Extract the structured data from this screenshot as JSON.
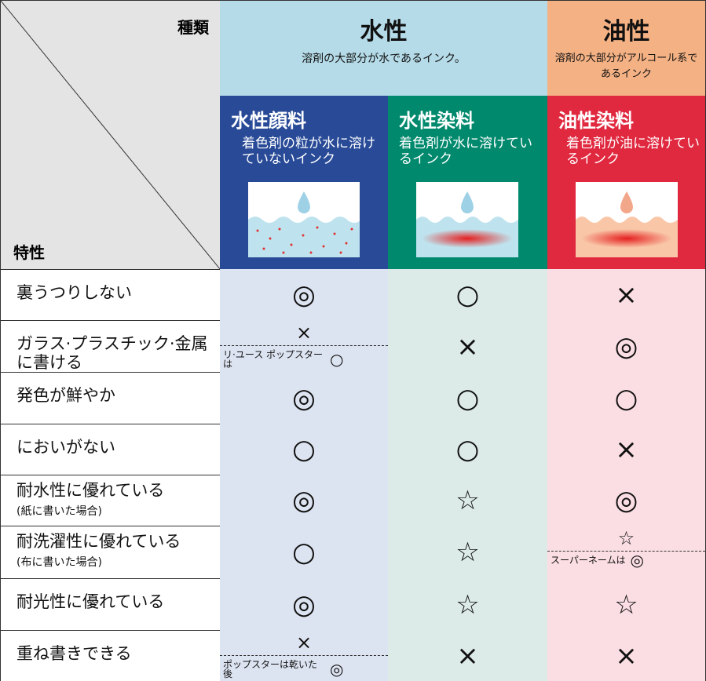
{
  "header": {
    "corner_top": "種類",
    "corner_bottom": "特性",
    "groups": [
      {
        "title": "水性",
        "desc": "溶剤の大部分が水であるインク。"
      },
      {
        "title": "油性",
        "desc": "溶剤の大部分がアルコール系であるインク"
      }
    ],
    "subtypes": [
      {
        "name": "水性顔料",
        "desc": "着色剤の粒が水に溶けていないインク"
      },
      {
        "name": "水性染料",
        "desc": "着色剤が水に溶けているインク"
      },
      {
        "name": "油性染料",
        "desc": "着色剤が油に溶けているインク"
      }
    ]
  },
  "rows": [
    {
      "label": "裏うつりしない",
      "cells": [
        {
          "mark": "◎"
        },
        {
          "mark": "○"
        },
        {
          "mark": "×"
        }
      ]
    },
    {
      "label": "ガラス·プラスチック·金属に書ける",
      "cells": [
        {
          "mark": "×",
          "note": "リ·ユース ポップスターは",
          "note_mark": "○"
        },
        {
          "mark": "×"
        },
        {
          "mark": "◎"
        }
      ]
    },
    {
      "label": "発色が鮮やか",
      "cells": [
        {
          "mark": "◎"
        },
        {
          "mark": "○"
        },
        {
          "mark": "○"
        }
      ]
    },
    {
      "label": "においがない",
      "cells": [
        {
          "mark": "○"
        },
        {
          "mark": "○"
        },
        {
          "mark": "×"
        }
      ]
    },
    {
      "label": "耐水性に優れている",
      "sublabel": "(紙に書いた場合)",
      "cells": [
        {
          "mark": "◎"
        },
        {
          "mark": "☆"
        },
        {
          "mark": "◎"
        }
      ]
    },
    {
      "label": "耐洗濯性に優れている",
      "sublabel": "(布に書いた場合)",
      "cells": [
        {
          "mark": "○"
        },
        {
          "mark": "☆"
        },
        {
          "mark": "☆",
          "note": "スーパーネームは",
          "note_mark": "◎"
        }
      ]
    },
    {
      "label": "耐光性に優れている",
      "cells": [
        {
          "mark": "◎"
        },
        {
          "mark": "☆"
        },
        {
          "mark": "☆"
        }
      ]
    },
    {
      "label": "重ね書きできる",
      "cells": [
        {
          "mark": "×",
          "note": "ポップスターは乾いた後",
          "note_mark": "◎"
        },
        {
          "mark": "×"
        },
        {
          "mark": "×"
        }
      ]
    }
  ]
}
